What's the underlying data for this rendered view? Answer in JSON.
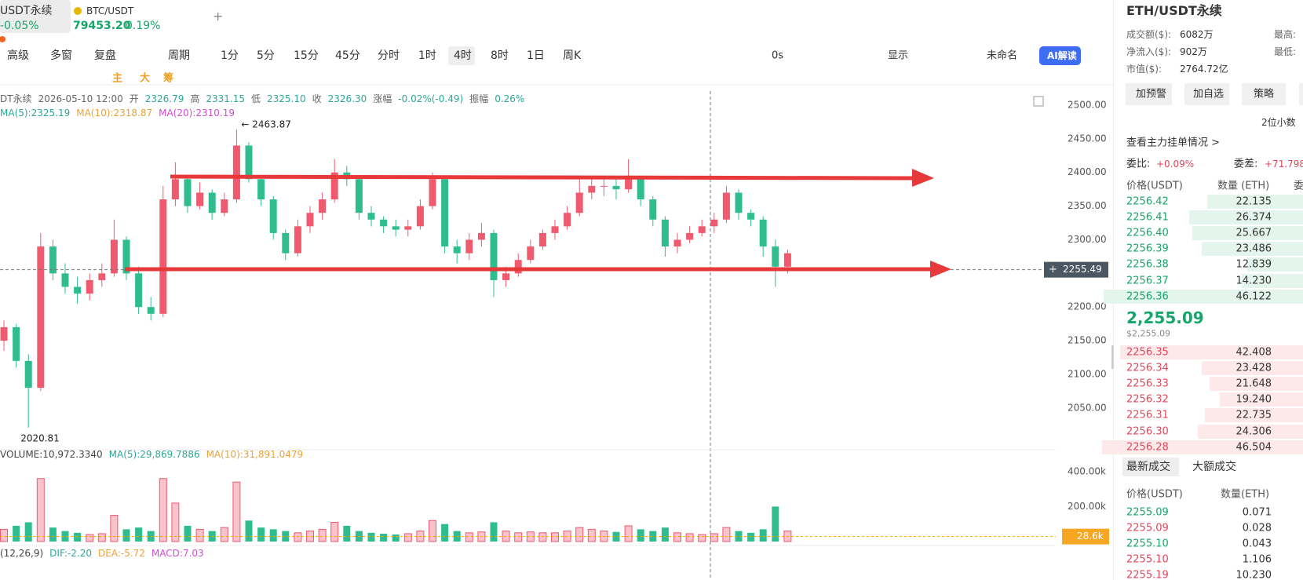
{
  "tabs": [
    {
      "name": "USDT永续",
      "change": "-0.05%"
    },
    {
      "name": "BTC/USDT",
      "price": "79453.20",
      "change": "0.19%"
    }
  ],
  "toolbar": {
    "items": [
      "高级",
      "多窗",
      "复盘",
      "周期",
      "1分",
      "5分",
      "15分",
      "45分",
      "分时",
      "1时",
      "4时",
      "8时",
      "1日",
      "周K"
    ],
    "selected": 10,
    "right": [
      "0s",
      "显示",
      "未命名",
      "AI解读"
    ]
  },
  "drawing_toolbar": [
    "主",
    "大",
    "筹"
  ],
  "chart_data": [
    {
      "type": "candlestick",
      "info": {
        "symbol": "DT永续",
        "time": "2026-05-10 12:00",
        "fields": [
          [
            "开",
            "2326.79"
          ],
          [
            "高",
            "2331.15"
          ],
          [
            "低",
            "2325.10"
          ],
          [
            "收",
            "2326.30"
          ],
          [
            "涨幅",
            "-0.02%(-0.49)"
          ],
          [
            "振幅",
            "0.26%"
          ]
        ]
      },
      "ma_legend": [
        {
          "name": "MA(5):2325.19",
          "color": "#2aa89a"
        },
        {
          "name": "MA(10):2318.87",
          "color": "#e8a33a"
        },
        {
          "name": "MA(20):2310.19",
          "color": "#d04ed0"
        }
      ],
      "up_color": "#ef5a6f",
      "down_color": "#2fbd8f",
      "ohlc": [
        [
          2150,
          2180,
          2135,
          2170
        ],
        [
          2170,
          2175,
          2110,
          2120
        ],
        [
          2120,
          2130,
          2020.81,
          2080
        ],
        [
          2080,
          2310,
          2075,
          2290
        ],
        [
          2290,
          2300,
          2240,
          2250
        ],
        [
          2250,
          2265,
          2220,
          2230
        ],
        [
          2230,
          2245,
          2205,
          2220
        ],
        [
          2220,
          2250,
          2210,
          2240
        ],
        [
          2240,
          2265,
          2230,
          2250
        ],
        [
          2250,
          2330,
          2245,
          2300
        ],
        [
          2300,
          2305,
          2240,
          2250
        ],
        [
          2250,
          2260,
          2190,
          2200
        ],
        [
          2200,
          2215,
          2180,
          2190
        ],
        [
          2190,
          2380,
          2185,
          2360
        ],
        [
          2360,
          2415,
          2350,
          2390
        ],
        [
          2390,
          2395,
          2340,
          2350
        ],
        [
          2350,
          2385,
          2345,
          2370
        ],
        [
          2370,
          2375,
          2330,
          2340
        ],
        [
          2340,
          2370,
          2335,
          2360
        ],
        [
          2360,
          2463.87,
          2355,
          2440
        ],
        [
          2440,
          2445,
          2385,
          2390
        ],
        [
          2390,
          2395,
          2350,
          2360
        ],
        [
          2360,
          2365,
          2300,
          2310
        ],
        [
          2310,
          2315,
          2270,
          2280
        ],
        [
          2280,
          2330,
          2275,
          2320
        ],
        [
          2320,
          2350,
          2310,
          2340
        ],
        [
          2340,
          2370,
          2330,
          2360
        ],
        [
          2360,
          2420,
          2355,
          2400
        ],
        [
          2400,
          2410,
          2380,
          2390
        ],
        [
          2390,
          2395,
          2330,
          2340
        ],
        [
          2340,
          2350,
          2320,
          2330
        ],
        [
          2330,
          2335,
          2310,
          2320
        ],
        [
          2320,
          2330,
          2305,
          2315
        ],
        [
          2315,
          2330,
          2305,
          2320
        ],
        [
          2320,
          2360,
          2315,
          2350
        ],
        [
          2350,
          2400,
          2345,
          2390
        ],
        [
          2390,
          2395,
          2280,
          2290
        ],
        [
          2290,
          2300,
          2265,
          2280
        ],
        [
          2280,
          2310,
          2270,
          2300
        ],
        [
          2300,
          2325,
          2290,
          2310
        ],
        [
          2310,
          2315,
          2215,
          2240
        ],
        [
          2240,
          2260,
          2230,
          2250
        ],
        [
          2250,
          2280,
          2245,
          2270
        ],
        [
          2270,
          2300,
          2265,
          2290
        ],
        [
          2290,
          2315,
          2285,
          2310
        ],
        [
          2310,
          2330,
          2300,
          2320
        ],
        [
          2320,
          2350,
          2315,
          2340
        ],
        [
          2340,
          2390,
          2335,
          2370
        ],
        [
          2370,
          2395,
          2360,
          2380
        ],
        [
          2380,
          2390,
          2365,
          2380
        ],
        [
          2380,
          2390,
          2360,
          2375
        ],
        [
          2375,
          2420,
          2370,
          2390
        ],
        [
          2390,
          2395,
          2350,
          2360
        ],
        [
          2360,
          2365,
          2320,
          2330
        ],
        [
          2330,
          2335,
          2275,
          2290
        ],
        [
          2290,
          2310,
          2280,
          2300
        ],
        [
          2300,
          2320,
          2295,
          2310
        ],
        [
          2310,
          2330,
          2305,
          2320
        ],
        [
          2320,
          2340,
          2310,
          2330
        ],
        [
          2330,
          2380,
          2325,
          2370
        ],
        [
          2370,
          2375,
          2330,
          2340
        ],
        [
          2340,
          2345,
          2320,
          2330
        ],
        [
          2330,
          2335,
          2275,
          2290
        ],
        [
          2290,
          2300,
          2230,
          2260
        ],
        [
          2260,
          2285,
          2250,
          2280
        ]
      ],
      "ylim": [
        2002,
        2521
      ],
      "yticks": [
        {
          "value": 2500,
          "label": "2500.00"
        },
        {
          "value": 2450,
          "label": "2450.00"
        },
        {
          "value": 2400,
          "label": "2400.00"
        },
        {
          "value": 2350,
          "label": "2350.00"
        },
        {
          "value": 2300,
          "label": "2300.00"
        },
        {
          "value": 2250,
          "label": "2250.00"
        },
        {
          "value": 2200,
          "label": "2200.00"
        },
        {
          "value": 2150,
          "label": "2150.00"
        },
        {
          "value": 2100,
          "label": "2100.00"
        },
        {
          "value": 2050,
          "label": "2050.00"
        }
      ],
      "last_price": {
        "value": 2255.49,
        "label": "2255.49"
      },
      "annotations": [
        {
          "value": 2463.87,
          "label": "← 2463.87",
          "index": 19
        },
        {
          "value": 2020.81,
          "label": "2020.81",
          "index": 2
        }
      ]
    },
    {
      "type": "bar",
      "legend": [
        {
          "name": "VOLUME:10,972.3340",
          "color": "#444444"
        },
        {
          "name": "MA(5):29,869.7886",
          "color": "#2aa89a"
        },
        {
          "name": "MA(10):31,891.0479",
          "color": "#e8a33a"
        }
      ],
      "values": [
        70,
        90,
        110,
        360,
        80,
        60,
        50,
        40,
        45,
        150,
        70,
        80,
        60,
        360,
        220,
        90,
        70,
        60,
        80,
        340,
        120,
        80,
        70,
        60,
        50,
        60,
        70,
        110,
        90,
        60,
        50,
        45,
        40,
        45,
        60,
        120,
        100,
        60,
        50,
        55,
        110,
        60,
        50,
        55,
        50,
        50,
        60,
        80,
        70,
        60,
        55,
        90,
        70,
        60,
        80,
        50,
        45,
        40,
        45,
        80,
        60,
        50,
        70,
        200,
        60
      ],
      "ylim": [
        0,
        480
      ],
      "yticks": [
        {
          "value": 400,
          "label": "400.00k"
        },
        {
          "value": 200,
          "label": "200.00k"
        }
      ],
      "last_value": {
        "value": 28.6,
        "label": "28.6k"
      }
    }
  ],
  "macd_legend": [
    {
      "name": "(12,26,9)",
      "color": "#444444"
    },
    {
      "name": "DIF:-2.20",
      "color": "#2aa89a"
    },
    {
      "name": "DEA:-5.72",
      "color": "#e8a33a"
    },
    {
      "name": "MACD:7.03",
      "color": "#d04ed0"
    }
  ],
  "panel": {
    "title": "ETH/USDT永续",
    "stats": [
      {
        "label": "成交额($):",
        "value": "6082万"
      },
      {
        "label": "净流入($):",
        "value": "902万"
      },
      {
        "label": "市值($):",
        "value": "2764.72亿"
      }
    ],
    "stats_right": [
      "最高:",
      "最低:"
    ],
    "buttons": [
      "加预警",
      "加自选",
      "策略"
    ],
    "decimals": "2位小数",
    "main_orders": "查看主力挂单情况 >",
    "ratio": {
      "label": "委比:",
      "value": "+0.09%"
    },
    "diff": {
      "label": "委差:",
      "value": "+71.798"
    },
    "book_headers": [
      "价格(USDT)",
      "数量 (ETH)",
      "委"
    ],
    "asks": [
      {
        "price": "2256.42",
        "qty": {
          "value": 22.135,
          "label": "22.135"
        }
      },
      {
        "price": "2256.41",
        "qty": {
          "value": 26.374,
          "label": "26.374"
        }
      },
      {
        "price": "2256.40",
        "qty": {
          "value": 25.667,
          "label": "25.667"
        }
      },
      {
        "price": "2256.39",
        "qty": {
          "value": 23.486,
          "label": "23.486"
        }
      },
      {
        "price": "2256.38",
        "qty": {
          "value": 12.839,
          "label": "12.839"
        }
      },
      {
        "price": "2256.37",
        "qty": {
          "value": 14.23,
          "label": "14.230"
        }
      },
      {
        "price": "2256.36",
        "qty": {
          "value": 46.122,
          "label": "46.122"
        }
      }
    ],
    "last_price": "2,255.09",
    "last_price_usd": "$2,255.09",
    "bids": [
      {
        "price": "2256.35",
        "qty": {
          "value": 42.408,
          "label": "42.408"
        }
      },
      {
        "price": "2256.34",
        "qty": {
          "value": 23.428,
          "label": "23.428"
        }
      },
      {
        "price": "2256.33",
        "qty": {
          "value": 21.648,
          "label": "21.648"
        }
      },
      {
        "price": "2256.32",
        "qty": {
          "value": 19.24,
          "label": "19.240"
        }
      },
      {
        "price": "2256.31",
        "qty": {
          "value": 22.735,
          "label": "22.735"
        }
      },
      {
        "price": "2256.30",
        "qty": {
          "value": 24.306,
          "label": "24.306"
        }
      },
      {
        "price": "2256.28",
        "qty": {
          "value": 46.504,
          "label": "46.504"
        }
      }
    ],
    "trade_tabs": [
      "最新成交",
      "大额成交"
    ],
    "trade_headers": [
      "价格(USDT)",
      "数量(ETH)"
    ],
    "trades": [
      {
        "price": "2255.09",
        "qty": "0.071",
        "side": "buy"
      },
      {
        "price": "2255.09",
        "qty": "0.028",
        "side": "sell"
      },
      {
        "price": "2255.10",
        "qty": "0.043",
        "side": "buy"
      },
      {
        "price": "2255.10",
        "qty": "1.106",
        "side": "sell"
      },
      {
        "price": "2255.19",
        "qty": "10.230",
        "side": "sell"
      }
    ]
  }
}
